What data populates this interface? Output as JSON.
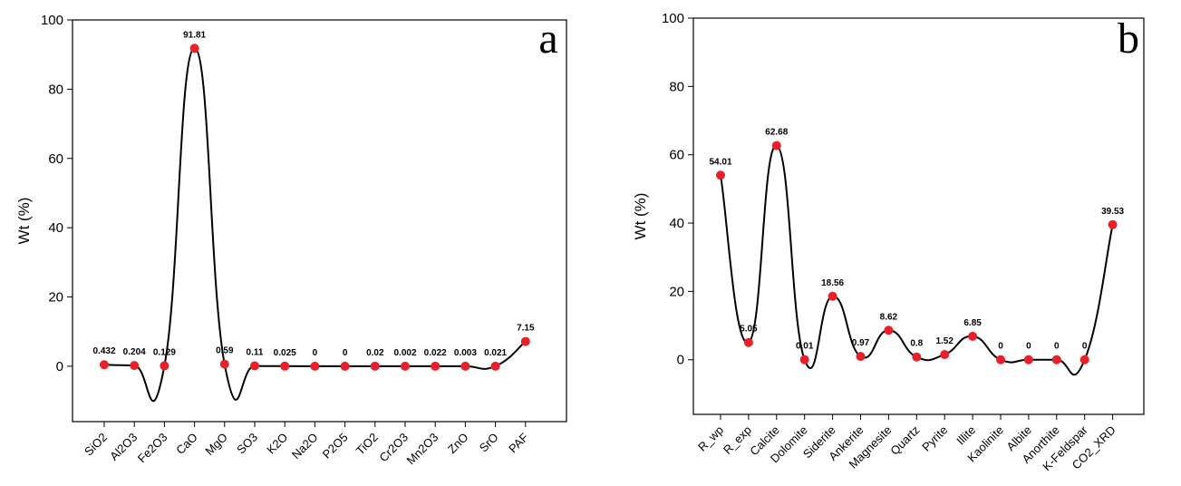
{
  "chart_data": [
    {
      "type": "line",
      "panel_label": "a",
      "y_label": "Wt (%)",
      "categories": [
        "SiO2",
        "Al2O3",
        "Fe2O3",
        "CaO",
        "MgO",
        "SO3",
        "K2O",
        "Na2O",
        "P2O5",
        "TiO2",
        "Cr2O3",
        "Mn2O3",
        "ZnO",
        "SrO",
        "PAF"
      ],
      "values": [
        0.432,
        0.204,
        0.129,
        91.81,
        0.59,
        0.11,
        0.025,
        0,
        0,
        0.02,
        0.002,
        0.022,
        0.003,
        0.021,
        7.15
      ],
      "color": "#e8202a",
      "line_color": "#000000",
      "smooth": true,
      "ylim": [
        -16,
        100
      ],
      "yticks": [
        0,
        20,
        40,
        60,
        80,
        100
      ]
    },
    {
      "type": "line",
      "panel_label": "b",
      "y_label": "Wt (%)",
      "categories": [
        "R_wp",
        "R_exp",
        "Calcite",
        "Dolomite",
        "Siderite",
        "Ankerite",
        "Magnesite",
        "Quartz",
        "Pyrite",
        "Illite",
        "Kaolinite",
        "Albite",
        "Anorthite",
        "K-Feldspar",
        "CO2_XRD"
      ],
      "values": [
        54.01,
        5.05,
        62.68,
        0.01,
        18.56,
        0.97,
        8.62,
        0.8,
        1.52,
        6.85,
        0,
        0,
        0,
        0,
        39.53
      ],
      "color": "#e8202a",
      "line_color": "#000000",
      "smooth": true,
      "ylim": [
        -16,
        100
      ],
      "yticks": [
        0,
        20,
        40,
        60,
        80,
        100
      ]
    }
  ]
}
